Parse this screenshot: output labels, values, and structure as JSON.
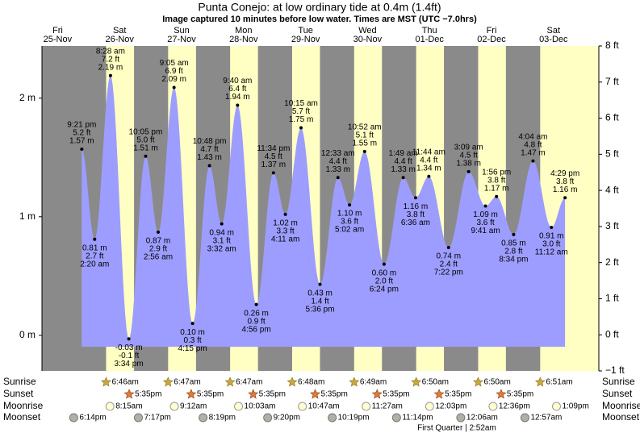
{
  "chart_data": {
    "type": "tide",
    "title": "Punta Conejo: at low  ordinary tide at 0.4m (1.4ft)",
    "subtitle": "Image captured 10 minutes before low water. Times are MST (UTC −7.0hrs)",
    "ylim": [
      -0.3,
      2.44
    ],
    "yticks": [
      {
        "value": 0,
        "label": "0 m"
      },
      {
        "value": 1,
        "label": "1 m"
      },
      {
        "value": 2,
        "label": "2 m"
      }
    ],
    "y2lim": [
      -1,
      8
    ],
    "y2ticks": [
      {
        "value": -1,
        "label": "−1 ft"
      },
      {
        "value": 0,
        "label": "0 ft"
      },
      {
        "value": 1,
        "label": "1 ft"
      },
      {
        "value": 2,
        "label": "2 ft"
      },
      {
        "value": 3,
        "label": "3 ft"
      },
      {
        "value": 4,
        "label": "4 ft"
      },
      {
        "value": 5,
        "label": "5 ft"
      },
      {
        "value": 6,
        "label": "6 ft"
      },
      {
        "value": 7,
        "label": "7 ft"
      },
      {
        "value": 8,
        "label": "8 ft"
      }
    ],
    "colors": {
      "night": "#8a8a8a",
      "day": "#ffffc4",
      "water": "#9d9dff",
      "day_label": "#e00000"
    },
    "row_labels": {
      "sunrise": "Sunrise",
      "sunset": "Sunset",
      "moonrise": "Moonrise",
      "moonset": "Moonset"
    },
    "moon_phase": "First Quarter | 2:52am",
    "days": [
      {
        "name": "Fri",
        "date": "25-Nov",
        "moonset": "6:14pm",
        "tides": [
          {
            "time": "9:21 pm",
            "m": 1.57,
            "m_label": "1.57 m",
            "ft": 5.2,
            "ft_label": "5.2 ft"
          }
        ]
      },
      {
        "name": "Sat",
        "date": "26-Nov",
        "sunrise": "6:46am",
        "sunset": "5:35pm",
        "moonrise": "8:15am",
        "moonset": "7:17pm",
        "tides": [
          {
            "time": "2:20 am",
            "m": 0.81,
            "m_label": "0.81 m",
            "ft": 2.7,
            "ft_label": "2.7 ft"
          },
          {
            "time": "8:28 am",
            "m": 2.19,
            "m_label": "2.19 m",
            "ft": 7.2,
            "ft_label": "7.2 ft"
          },
          {
            "time": "3:34 pm",
            "m": -0.03,
            "m_label": "-0.03 m",
            "ft": -0.1,
            "ft_label": "-0.1 ft"
          },
          {
            "time": "10:05 pm",
            "m": 1.51,
            "m_label": "1.51 m",
            "ft": 5.0,
            "ft_label": "5.0 ft"
          }
        ]
      },
      {
        "name": "Sun",
        "date": "27-Nov",
        "sunrise": "6:47am",
        "sunset": "5:35pm",
        "moonrise": "9:12am",
        "moonset": "8:19pm",
        "tides": [
          {
            "time": "2:56 am",
            "m": 0.87,
            "m_label": "0.87 m",
            "ft": 2.9,
            "ft_label": "2.9 ft"
          },
          {
            "time": "9:05 am",
            "m": 2.09,
            "m_label": "2.09 m",
            "ft": 6.9,
            "ft_label": "6.9 ft"
          },
          {
            "time": "4:15 pm",
            "m": 0.1,
            "m_label": "0.10 m",
            "ft": 0.3,
            "ft_label": "0.3 ft"
          },
          {
            "time": "10:48 pm",
            "m": 1.43,
            "m_label": "1.43 m",
            "ft": 4.7,
            "ft_label": "4.7 ft"
          }
        ]
      },
      {
        "name": "Mon",
        "date": "28-Nov",
        "sunrise": "6:47am",
        "sunset": "5:35pm",
        "moonrise": "10:03am",
        "moonset": "9:20pm",
        "tides": [
          {
            "time": "3:32 am",
            "m": 0.94,
            "m_label": "0.94 m",
            "ft": 3.1,
            "ft_label": "3.1 ft"
          },
          {
            "time": "9:40 am",
            "m": 1.94,
            "m_label": "1.94 m",
            "ft": 6.4,
            "ft_label": "6.4 ft"
          },
          {
            "time": "4:56 pm",
            "m": 0.26,
            "m_label": "0.26 m",
            "ft": 0.9,
            "ft_label": "0.9 ft"
          },
          {
            "time": "11:34 pm",
            "m": 1.37,
            "m_label": "1.37 m",
            "ft": 4.5,
            "ft_label": "4.5 ft"
          }
        ]
      },
      {
        "name": "Tue",
        "date": "29-Nov",
        "sunrise": "6:48am",
        "sunset": "5:35pm",
        "moonrise": "10:47am",
        "moonset": "10:19pm",
        "tides": [
          {
            "time": "4:11 am",
            "m": 1.02,
            "m_label": "1.02 m",
            "ft": 3.3,
            "ft_label": "3.3 ft"
          },
          {
            "time": "10:15 am",
            "m": 1.75,
            "m_label": "1.75 m",
            "ft": 5.7,
            "ft_label": "5.7 ft"
          },
          {
            "time": "5:36 pm",
            "m": 0.43,
            "m_label": "0.43 m",
            "ft": 1.4,
            "ft_label": "1.4 ft"
          }
        ]
      },
      {
        "name": "Wed",
        "date": "30-Nov",
        "sunrise": "6:49am",
        "sunset": "5:35pm",
        "moonrise": "11:27am",
        "moonset": "11:14pm",
        "tides": [
          {
            "time": "12:33 am",
            "m": 1.33,
            "m_label": "1.33 m",
            "ft": 4.4,
            "ft_label": "4.4 ft"
          },
          {
            "time": "5:02 am",
            "m": 1.1,
            "m_label": "1.10 m",
            "ft": 3.6,
            "ft_label": "3.6 ft"
          },
          {
            "time": "10:52 am",
            "m": 1.55,
            "m_label": "1.55 m",
            "ft": 5.1,
            "ft_label": "5.1 ft"
          },
          {
            "time": "6:24 pm",
            "m": 0.6,
            "m_label": "0.60 m",
            "ft": 2.0,
            "ft_label": "2.0 ft"
          }
        ]
      },
      {
        "name": "Thu",
        "date": "01-Dec",
        "sunrise": "6:50am",
        "sunset": "5:35pm",
        "moonrise": "12:03pm",
        "tides": [
          {
            "time": "1:49 am",
            "m": 1.33,
            "m_label": "1.33 m",
            "ft": 4.4,
            "ft_label": "4.4 ft"
          },
          {
            "time": "6:36 am",
            "m": 1.16,
            "m_label": "1.16 m",
            "ft": 3.8,
            "ft_label": "3.8 ft"
          },
          {
            "time": "11:44 am",
            "m": 1.34,
            "m_label": "1.34 m",
            "ft": 4.4,
            "ft_label": "4.4 ft"
          },
          {
            "time": "7:22 pm",
            "m": 0.74,
            "m_label": "0.74 m",
            "ft": 2.4,
            "ft_label": "2.4 ft"
          }
        ]
      },
      {
        "name": "Fri",
        "date": "02-Dec",
        "sunrise": "6:50am",
        "sunset": "5:35pm",
        "moonrise": "12:36pm",
        "moonset": "12:06am",
        "tides": [
          {
            "time": "3:09 am",
            "m": 1.38,
            "m_label": "1.38 m",
            "ft": 4.5,
            "ft_label": "4.5 ft"
          },
          {
            "time": "9:41 am",
            "m": 1.09,
            "m_label": "1.09 m",
            "ft": 3.6,
            "ft_label": "3.6 ft"
          },
          {
            "time": "1:56 pm",
            "m": 1.17,
            "m_label": "1.17 m",
            "ft": 3.8,
            "ft_label": "3.8 ft"
          },
          {
            "time": "8:34 pm",
            "m": 0.85,
            "m_label": "0.85 m",
            "ft": 2.8,
            "ft_label": "2.8 ft"
          }
        ]
      },
      {
        "name": "Sat",
        "date": "03-Dec",
        "sunrise": "6:51am",
        "moonrise": "1:09pm",
        "moonset": "12:57am",
        "tides": [
          {
            "time": "4:04 am",
            "m": 1.47,
            "m_label": "1.47 m",
            "ft": 4.8,
            "ft_label": "4.8 ft"
          },
          {
            "time": "11:12 am",
            "m": 0.91,
            "m_label": "0.91 m",
            "ft": 3.0,
            "ft_label": "3.0 ft"
          },
          {
            "time": "4:29 pm",
            "m": 1.16,
            "m_label": "1.16 m",
            "ft": 3.8,
            "ft_label": "3.8 ft"
          }
        ]
      }
    ]
  }
}
